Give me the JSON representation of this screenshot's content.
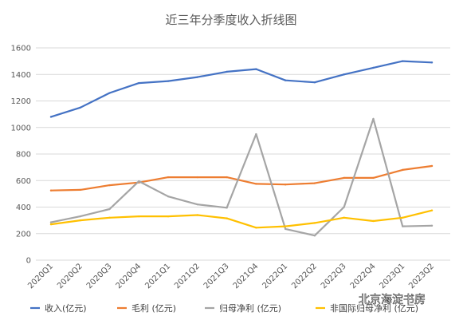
{
  "chart_data": {
    "type": "line",
    "title": "近三年分季度收入折线图",
    "categories": [
      "2020Q1",
      "2020Q2",
      "2020Q3",
      "2020Q4",
      "2021Q1",
      "2021Q2",
      "2021Q3",
      "2021Q4",
      "2022Q1",
      "2022Q2",
      "2022Q3",
      "2022Q4",
      "2023Q1",
      "2023Q2"
    ],
    "series": [
      {
        "name": "收入(亿元)",
        "color": "#4472C4",
        "values": [
          1080,
          1150,
          1260,
          1335,
          1350,
          1380,
          1420,
          1440,
          1355,
          1340,
          1400,
          1450,
          1500,
          1490
        ]
      },
      {
        "name": "毛利 (亿元)",
        "color": "#ED7D31",
        "values": [
          525,
          530,
          565,
          585,
          625,
          625,
          625,
          575,
          570,
          580,
          620,
          620,
          680,
          710
        ]
      },
      {
        "name": "归母净利 (亿元)",
        "color": "#A5A5A5",
        "values": [
          285,
          330,
          385,
          595,
          480,
          420,
          395,
          950,
          235,
          185,
          400,
          1065,
          255,
          260
        ]
      },
      {
        "name": "非国际归母净利 (亿元)",
        "color": "#FFC000",
        "values": [
          270,
          300,
          320,
          330,
          330,
          340,
          315,
          245,
          255,
          280,
          320,
          295,
          320,
          375
        ]
      }
    ],
    "y_ticks": [
      "0",
      "200",
      "400",
      "600",
      "800",
      "1000",
      "1200",
      "1400",
      "1600"
    ],
    "ylim": [
      0,
      1600
    ],
    "xlabel": "",
    "ylabel": "",
    "grid": true,
    "legend_position": "bottom"
  },
  "watermark": "北京海淀书房"
}
